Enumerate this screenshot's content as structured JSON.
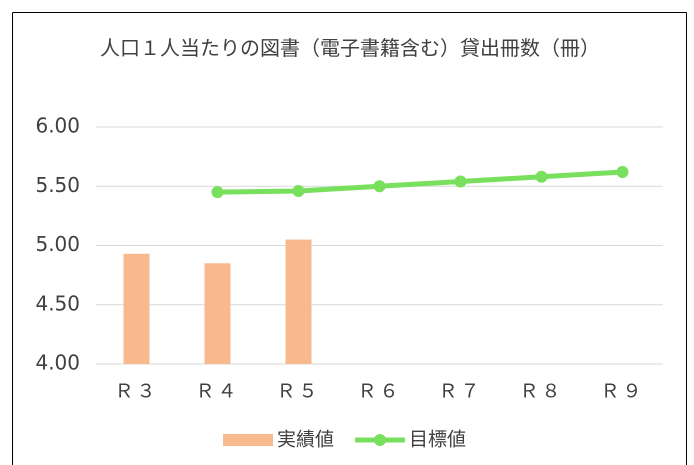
{
  "chart_data": {
    "type": "combo",
    "title": "人口１人当たりの図書（電子書籍含む）貸出冊数（冊）",
    "categories": [
      "Ｒ３",
      "Ｒ４",
      "Ｒ５",
      "Ｒ６",
      "Ｒ７",
      "Ｒ８",
      "Ｒ９"
    ],
    "series": [
      {
        "name": "実績値",
        "type": "bar",
        "color": "#f8b98c",
        "values": [
          4.93,
          4.85,
          5.05,
          null,
          null,
          null,
          null
        ]
      },
      {
        "name": "目標値",
        "type": "line",
        "color": "#78e05c",
        "values": [
          null,
          5.45,
          5.46,
          5.5,
          5.54,
          5.58,
          5.62
        ]
      }
    ],
    "ylim": [
      4,
      6
    ],
    "yticks": [
      {
        "value": 4,
        "label": "4.00"
      },
      {
        "value": 4.5,
        "label": "4.50"
      },
      {
        "value": 5,
        "label": "5.00"
      },
      {
        "value": 5.5,
        "label": "5.50"
      },
      {
        "value": 6,
        "label": "6.00"
      }
    ],
    "grid": true,
    "legend": "bottom"
  }
}
